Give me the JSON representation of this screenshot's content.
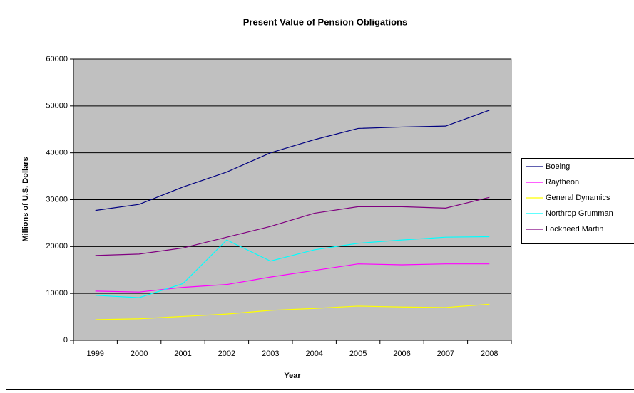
{
  "chart_data": {
    "type": "line",
    "title": "Present Value of Pension Obligations",
    "x_label": "Year",
    "y_label": "Millions of U.S. Dollars",
    "categories": [
      "1999",
      "2000",
      "2001",
      "2002",
      "2003",
      "2004",
      "2005",
      "2006",
      "2007",
      "2008"
    ],
    "series": [
      {
        "name": "Boeing",
        "color": "#000080",
        "values": [
          27700,
          29000,
          32700,
          35900,
          40000,
          42800,
          45200,
          45500,
          45700,
          49100
        ]
      },
      {
        "name": "Raytheon",
        "color": "#ff00ff",
        "values": [
          10500,
          10300,
          11300,
          11900,
          13500,
          14900,
          16300,
          16100,
          16300,
          16300
        ]
      },
      {
        "name": "General Dynamics",
        "color": "#ffff00",
        "values": [
          4400,
          4600,
          5100,
          5600,
          6400,
          6800,
          7300,
          7100,
          7000,
          7700
        ]
      },
      {
        "name": "Northrop Grumman",
        "color": "#00ffff",
        "values": [
          9600,
          9100,
          12100,
          21400,
          16900,
          19300,
          20700,
          21400,
          22000,
          22100
        ]
      },
      {
        "name": "Lockheed Martin",
        "color": "#800080",
        "values": [
          18100,
          18400,
          19700,
          22000,
          24300,
          27100,
          28500,
          28500,
          28200,
          30500
        ]
      }
    ],
    "ylim": [
      0,
      60000
    ],
    "yticks": [
      0,
      10000,
      20000,
      30000,
      40000,
      50000,
      60000
    ],
    "grid": true,
    "legend": "right"
  }
}
